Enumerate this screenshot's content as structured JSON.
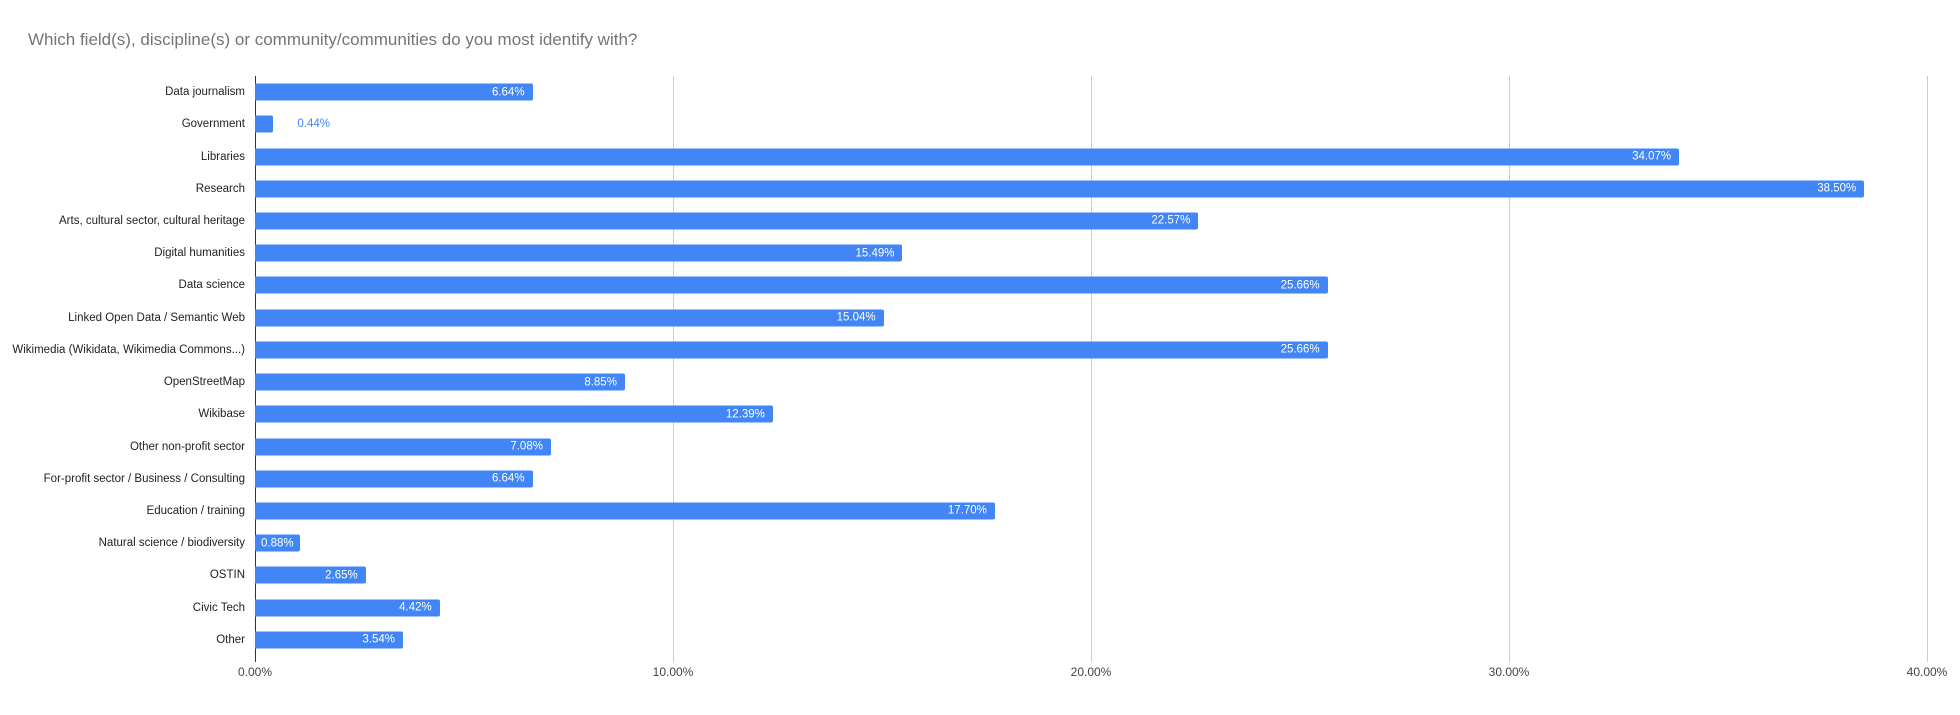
{
  "colors": {
    "bar": "#4285f4",
    "title": "#757575",
    "category_label": "#222222",
    "tick_label": "#444444",
    "gridline": "#cccccc",
    "baseline": "#333333",
    "value_inside": "#ffffff",
    "value_outside": "#4285f4"
  },
  "chart_data": {
    "type": "bar",
    "orientation": "horizontal",
    "title": "Which field(s), discipline(s) or community/communities do you most identify with?",
    "xlabel": "",
    "ylabel": "",
    "xlim": [
      0,
      40
    ],
    "grid": true,
    "x_tick_labels": [
      "0.00%",
      "10.00%",
      "20.00%",
      "30.00%",
      "40.00%"
    ],
    "categories": [
      "Data journalism",
      "Government",
      "Libraries",
      "Research",
      "Arts, cultural sector, cultural heritage",
      "Digital humanities",
      "Data science",
      "Linked Open Data / Semantic Web",
      "Wikimedia (Wikidata, Wikimedia Commons...)",
      "OpenStreetMap",
      "Wikibase",
      "Other non-profit sector",
      "For-profit sector / Business / Consulting",
      "Education / training",
      "Natural science / biodiversity",
      "OSTIN",
      "Civic Tech",
      "Other"
    ],
    "values": [
      6.64,
      0.44,
      34.07,
      38.5,
      22.57,
      15.49,
      25.66,
      15.04,
      25.66,
      8.85,
      12.39,
      7.08,
      6.64,
      17.7,
      0.88,
      2.65,
      4.42,
      3.54
    ],
    "value_labels": [
      "6.64%",
      "0.44%",
      "34.07%",
      "38.50%",
      "22.57%",
      "15.49%",
      "25.66%",
      "15.04%",
      "25.66%",
      "8.85%",
      "12.39%",
      "7.08%",
      "6.64%",
      "17.70%",
      "0.88%",
      "2.65%",
      "4.42%",
      "3.54%"
    ],
    "value_label_styles": [
      "inside",
      "outside",
      "inside",
      "inside",
      "inside",
      "inside",
      "inside",
      "inside",
      "inside",
      "inside",
      "inside",
      "inside",
      "inside",
      "inside",
      "box",
      "inside",
      "inside",
      "inside"
    ]
  }
}
